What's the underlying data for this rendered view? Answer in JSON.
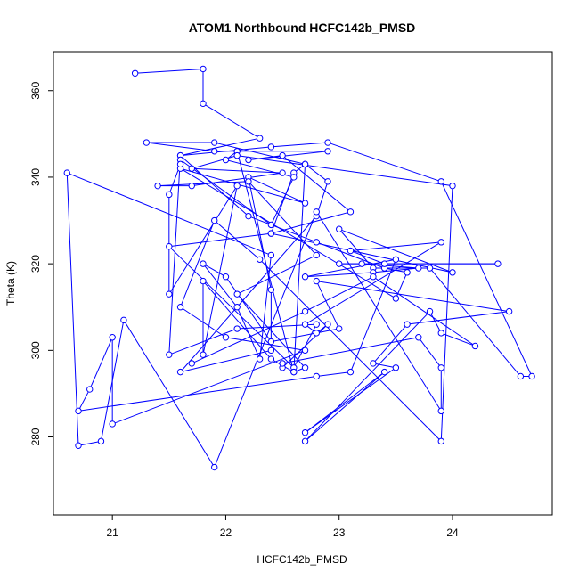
{
  "chart_data": {
    "type": "line",
    "title": "ATOM1 Northbound HCFC142b_PMSD",
    "xlabel": "HCFC142b_PMSD",
    "ylabel": "Theta (K)",
    "xlim": [
      20.48,
      24.88
    ],
    "ylim": [
      262.0,
      369.0
    ],
    "xticks": [
      21,
      22,
      23,
      24
    ],
    "yticks": [
      280,
      300,
      320,
      340,
      360
    ],
    "grid": false,
    "marker": "open-circle",
    "color": "#0000ff",
    "x": [
      21.2,
      21.8,
      21.8,
      22.3,
      21.6,
      22.4,
      22.9,
      23.9,
      24.7,
      24.6,
      23.8,
      23.3,
      23.0,
      24.0,
      22.4,
      21.5,
      22.6,
      22.8,
      22.1,
      21.5,
      21.6,
      22.2,
      22.8,
      23.4,
      23.6,
      23.5,
      21.6,
      22.7,
      22.2,
      22.4,
      22.4,
      21.6,
      22.8,
      22.9,
      22.7,
      21.9,
      21.3,
      21.9,
      22.1,
      22.9,
      22.2,
      22.5,
      23.1,
      22.4,
      22.6,
      22.7,
      22.6,
      22.1,
      22.0,
      22.6,
      22.4,
      21.6,
      21.6,
      21.5,
      21.5,
      22.1,
      21.8,
      21.8,
      22.4,
      22.6,
      22.7,
      22.1,
      22.8,
      22.2,
      21.4,
      21.7,
      22.5,
      21.7,
      22.1,
      24.0,
      23.9,
      22.3,
      21.9,
      21.6,
      22.0,
      22.7,
      21.0,
      21.0,
      20.8,
      20.7,
      22.8,
      23.1,
      23.5,
      22.7,
      23.3,
      23.7,
      23.2,
      23.0,
      24.4,
      23.4,
      23.1,
      23.9,
      22.7,
      22.8,
      22.9,
      22.5,
      22.5,
      23.7,
      23.9,
      23.9,
      22.8,
      21.9,
      21.1,
      20.9,
      20.7,
      20.6,
      22.4,
      22.3,
      22.1,
      21.8,
      22.0,
      22.4,
      23.0,
      22.8,
      24.5,
      23.6,
      23.3,
      23.5,
      22.7,
      23.4,
      22.7,
      23.8,
      23.9,
      24.2,
      23.3,
      22.7,
      21.7
    ],
    "y": [
      364,
      365,
      357,
      349,
      345,
      347,
      348,
      339,
      294,
      294,
      319,
      319,
      328,
      318,
      327,
      324,
      296,
      306,
      305,
      299,
      345,
      331,
      325,
      319,
      318,
      312,
      342,
      334,
      340,
      314,
      300,
      295,
      331,
      339,
      343,
      348,
      348,
      346,
      346,
      346,
      344,
      345,
      332,
      327,
      341,
      343,
      295,
      346,
      344,
      340,
      329,
      344,
      343,
      336,
      313,
      338,
      299,
      316,
      298,
      295,
      296,
      313,
      322,
      339,
      338,
      338,
      341,
      342,
      345,
      338,
      279,
      321,
      330,
      310,
      303,
      300,
      283,
      303,
      291,
      286,
      294,
      295,
      321,
      317,
      318,
      319,
      320,
      320,
      320,
      320,
      323,
      325,
      306,
      304,
      306,
      296,
      297,
      303,
      296,
      286,
      332,
      273,
      307,
      279,
      278,
      341,
      322,
      298,
      310,
      320,
      317,
      302,
      305,
      316,
      309,
      306,
      297,
      296,
      281,
      295,
      279,
      309,
      304,
      301,
      317,
      309,
      297
    ]
  }
}
